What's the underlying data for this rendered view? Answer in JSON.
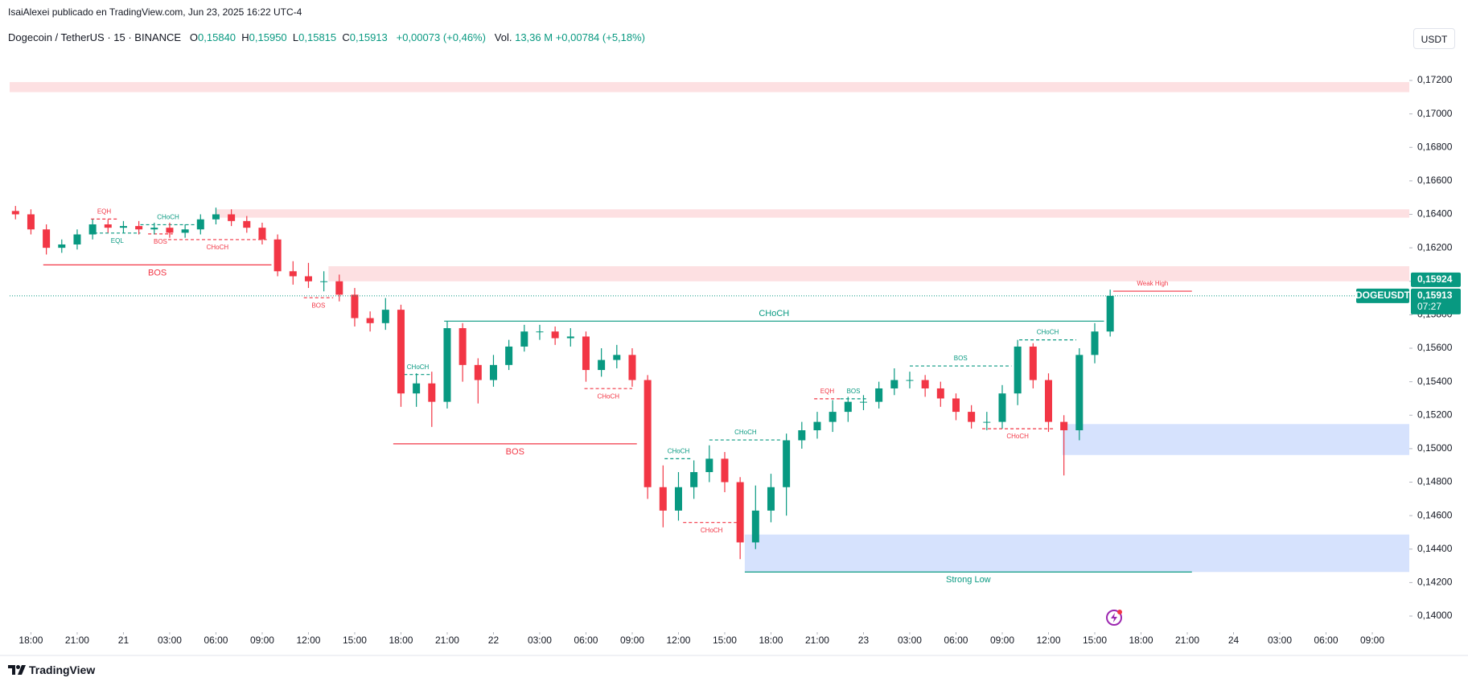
{
  "header": {
    "attribution": "IsaiAlexei publicado en TradingView.com, Jun 23, 2025 16:22 UTC-4"
  },
  "chart_data": {
    "type": "candlestick",
    "legend": {
      "symbol": "Dogecoin / TetherUS · 15 · BINANCE",
      "ohlc": [
        {
          "key": "O",
          "value": "0,15840"
        },
        {
          "key": "H",
          "value": "0,15950"
        },
        {
          "key": "L",
          "value": "0,15815"
        },
        {
          "key": "C",
          "value": "0,15913"
        }
      ],
      "change": "+0,00073 (+0,46%)",
      "volume_label": "Vol.",
      "volume": "13,36 M",
      "volume_change": "+0,00784 (+5,18%)"
    },
    "currency": "USDT",
    "up_color": "#089981",
    "down_color": "#f23645",
    "xlim": [
      -1.38,
      89.4
    ],
    "ylim": [
      0.13904,
      0.17522
    ],
    "xticks": [
      {
        "value": 0,
        "label": "18:00"
      },
      {
        "value": 3,
        "label": "21:00"
      },
      {
        "value": 6,
        "label": "21"
      },
      {
        "value": 9,
        "label": "03:00"
      },
      {
        "value": 12,
        "label": "06:00"
      },
      {
        "value": 15,
        "label": "09:00"
      },
      {
        "value": 18,
        "label": "12:00"
      },
      {
        "value": 21,
        "label": "15:00"
      },
      {
        "value": 24,
        "label": "18:00"
      },
      {
        "value": 27,
        "label": "21:00"
      },
      {
        "value": 30,
        "label": "22"
      },
      {
        "value": 33,
        "label": "03:00"
      },
      {
        "value": 36,
        "label": "06:00"
      },
      {
        "value": 39,
        "label": "09:00"
      },
      {
        "value": 42,
        "label": "12:00"
      },
      {
        "value": 45,
        "label": "15:00"
      },
      {
        "value": 48,
        "label": "18:00"
      },
      {
        "value": 51,
        "label": "21:00"
      },
      {
        "value": 54,
        "label": "23"
      },
      {
        "value": 57,
        "label": "03:00"
      },
      {
        "value": 60,
        "label": "06:00"
      },
      {
        "value": 63,
        "label": "09:00"
      },
      {
        "value": 66,
        "label": "12:00"
      },
      {
        "value": 69,
        "label": "15:00"
      },
      {
        "value": 72,
        "label": "18:00"
      },
      {
        "value": 75,
        "label": "21:00"
      },
      {
        "value": 78,
        "label": "24"
      },
      {
        "value": 81,
        "label": "03:00"
      },
      {
        "value": 84,
        "label": "06:00"
      },
      {
        "value": 87,
        "label": "09:00"
      }
    ],
    "yticks": [
      {
        "value": 0.14,
        "label": "0,14000"
      },
      {
        "value": 0.142,
        "label": "0,14200"
      },
      {
        "value": 0.144,
        "label": "0,14400"
      },
      {
        "value": 0.146,
        "label": "0,14600"
      },
      {
        "value": 0.148,
        "label": "0,14800"
      },
      {
        "value": 0.15,
        "label": "0,15000"
      },
      {
        "value": 0.152,
        "label": "0,15200"
      },
      {
        "value": 0.154,
        "label": "0,15400"
      },
      {
        "value": 0.156,
        "label": "0,15600"
      },
      {
        "value": 0.158,
        "label": "0,15800"
      },
      {
        "value": 0.16,
        "label": "0,16000"
      },
      {
        "value": 0.162,
        "label": "0,16200"
      },
      {
        "value": 0.164,
        "label": "0,16400"
      },
      {
        "value": 0.166,
        "label": "0,16600"
      },
      {
        "value": 0.168,
        "label": "0,16800"
      },
      {
        "value": 0.17,
        "label": "0,17000"
      },
      {
        "value": 0.172,
        "label": "0,17200"
      }
    ],
    "x": [
      -1,
      0,
      1,
      2,
      3,
      4,
      5,
      6,
      7,
      8,
      9,
      10,
      11,
      12,
      13,
      14,
      15,
      16,
      17,
      18,
      19,
      20,
      21,
      22,
      23,
      24,
      25,
      26,
      27,
      28,
      29,
      30,
      31,
      32,
      33,
      34,
      35,
      36,
      37,
      38,
      39,
      40,
      41,
      42,
      43,
      44,
      45,
      46,
      47,
      48,
      49,
      50,
      51,
      52,
      53,
      54,
      55,
      56,
      57,
      58,
      59,
      60,
      61,
      62,
      63,
      64,
      65,
      66,
      67,
      68,
      69,
      70
    ],
    "open": [
      0.1642,
      0.164,
      0.1631,
      0.162,
      0.1622,
      0.1628,
      0.1634,
      0.1632,
      0.1633,
      0.1631,
      0.1632,
      0.1629,
      0.1631,
      0.1637,
      0.164,
      0.1636,
      0.1632,
      0.1625,
      0.1606,
      0.1603,
      0.16,
      0.16,
      0.1592,
      0.1578,
      0.1575,
      0.1583,
      0.1533,
      0.1539,
      0.1528,
      0.1572,
      0.155,
      0.1541,
      0.155,
      0.1561,
      0.157,
      0.157,
      0.1566,
      0.1567,
      0.1547,
      0.1553,
      0.1556,
      0.1541,
      0.1477,
      0.1463,
      0.1477,
      0.1486,
      0.1494,
      0.148,
      0.1444,
      0.1463,
      0.1477,
      0.1505,
      0.1511,
      0.1516,
      0.1522,
      0.1528,
      0.1528,
      0.1536,
      0.1541,
      0.1541,
      0.1536,
      0.153,
      0.1522,
      0.1516,
      0.1516,
      0.1533,
      0.1561,
      0.1541,
      0.1516,
      0.1511,
      0.1556,
      0.157
    ],
    "high": [
      0.1645,
      0.1643,
      0.1634,
      0.1625,
      0.1631,
      0.1637,
      0.1637,
      0.1636,
      0.1636,
      0.1635,
      0.1635,
      0.1634,
      0.164,
      0.1644,
      0.1643,
      0.1639,
      0.1635,
      0.1628,
      0.1612,
      0.1611,
      0.1606,
      0.1604,
      0.1596,
      0.1582,
      0.159,
      0.1586,
      0.1545,
      0.1546,
      0.1576,
      0.1575,
      0.1554,
      0.1556,
      0.1565,
      0.1574,
      0.1574,
      0.1573,
      0.1572,
      0.157,
      0.156,
      0.1562,
      0.156,
      0.1544,
      0.149,
      0.1486,
      0.1493,
      0.1502,
      0.1498,
      0.1483,
      0.1478,
      0.1485,
      0.1509,
      0.1516,
      0.1522,
      0.1529,
      0.1531,
      0.1532,
      0.154,
      0.1548,
      0.1546,
      0.1544,
      0.154,
      0.1533,
      0.1526,
      0.1522,
      0.1538,
      0.1565,
      0.1563,
      0.1545,
      0.152,
      0.156,
      0.1575,
      0.1595
    ],
    "low": [
      0.1637,
      0.1628,
      0.1616,
      0.1617,
      0.1619,
      0.1625,
      0.1629,
      0.1629,
      0.1628,
      0.1628,
      0.1626,
      0.1626,
      0.1628,
      0.1634,
      0.1633,
      0.1629,
      0.1622,
      0.1603,
      0.1598,
      0.1596,
      0.1594,
      0.1588,
      0.1573,
      0.157,
      0.1571,
      0.1525,
      0.1525,
      0.1513,
      0.1524,
      0.154,
      0.1527,
      0.1537,
      0.1547,
      0.1558,
      0.1565,
      0.1562,
      0.1561,
      0.154,
      0.1543,
      0.1548,
      0.1537,
      0.147,
      0.1453,
      0.1457,
      0.147,
      0.148,
      0.1474,
      0.1434,
      0.144,
      0.1456,
      0.146,
      0.15,
      0.1506,
      0.151,
      0.1516,
      0.1523,
      0.1524,
      0.1532,
      0.1536,
      0.1531,
      0.1525,
      0.1517,
      0.1512,
      0.1511,
      0.1512,
      0.1526,
      0.1536,
      0.151,
      0.1484,
      0.1505,
      0.1551,
      0.1567
    ],
    "close": [
      0.164,
      0.1631,
      0.162,
      0.1622,
      0.1628,
      0.1634,
      0.1632,
      0.1633,
      0.1631,
      0.1632,
      0.1629,
      0.1631,
      0.1637,
      0.164,
      0.1636,
      0.1632,
      0.1625,
      0.1606,
      0.1603,
      0.16,
      0.16,
      0.1592,
      0.1578,
      0.1575,
      0.1583,
      0.1533,
      0.1539,
      0.1528,
      0.1572,
      0.155,
      0.1541,
      0.155,
      0.1561,
      0.157,
      0.157,
      0.1566,
      0.1567,
      0.1547,
      0.1553,
      0.1556,
      0.1541,
      0.1477,
      0.1463,
      0.1477,
      0.1486,
      0.1494,
      0.148,
      0.1444,
      0.1463,
      0.1477,
      0.1505,
      0.1511,
      0.1516,
      0.1522,
      0.1528,
      0.1528,
      0.1536,
      0.1541,
      0.1541,
      0.1536,
      0.153,
      0.1522,
      0.1516,
      0.1516,
      0.1533,
      0.1561,
      0.1541,
      0.1516,
      0.1511,
      0.1556,
      0.157,
      0.15913
    ],
    "zones": [
      {
        "top": 0.1719,
        "bottom": 0.1713,
        "color": "#fde0e2"
      },
      {
        "top": 0.1643,
        "bottom": 0.1638,
        "from": 12,
        "color": "#fde0e2"
      },
      {
        "top": 0.1609,
        "bottom": 0.16,
        "from": 19.3,
        "color": "#fde0e2"
      },
      {
        "top": 0.15147,
        "bottom": 0.14962,
        "from": 66.9,
        "color": "#d6e2fd"
      },
      {
        "top": 0.14487,
        "bottom": 0.14263,
        "from": 46.3,
        "color": "#d6e2fd"
      }
    ],
    "structures": [
      {
        "label": "EQH",
        "color": "#f23645",
        "y": 0.16372,
        "x": [
          3.9,
          5.6
        ],
        "style": "dashed",
        "side": "above"
      },
      {
        "label": "CHoCH",
        "color": "#089981",
        "y": 0.16338,
        "x": [
          7.1,
          10.7
        ],
        "style": "dashed",
        "side": "above"
      },
      {
        "label": "EQL",
        "color": "#089981",
        "y": 0.16288,
        "x": [
          4.1,
          7.1
        ],
        "style": "dashed",
        "side": "below"
      },
      {
        "label": "BOS",
        "color": "#f23645",
        "y": 0.16283,
        "x": [
          7.6,
          9.2
        ],
        "style": "dashed",
        "side": "below"
      },
      {
        "label": "CHoCH",
        "color": "#f23645",
        "y": 0.16249,
        "x": [
          8.9,
          15.3
        ],
        "style": "dashed",
        "side": "below"
      },
      {
        "label": "BOS",
        "color": "#f23645",
        "y": 0.16098,
        "x": [
          0.8,
          15.6
        ],
        "style": "solid",
        "side": "below"
      },
      {
        "label": "BOS",
        "color": "#f23645",
        "y": 0.15902,
        "x": [
          17.7,
          19.6
        ],
        "style": "dashed",
        "side": "below"
      },
      {
        "label": "CHoCH",
        "color": "#089981",
        "y": 0.15762,
        "x": [
          26.8,
          69.6
        ],
        "style": "solid",
        "side": "above"
      },
      {
        "label": "CHoCH",
        "color": "#089981",
        "y": 0.15443,
        "x": [
          24.2,
          26.0
        ],
        "style": "dashed",
        "side": "above"
      },
      {
        "label": "CHoCH",
        "color": "#f23645",
        "y": 0.15359,
        "x": [
          35.9,
          39.0
        ],
        "style": "dashed",
        "side": "below"
      },
      {
        "label": "BOS",
        "color": "#f23645",
        "y": 0.15029,
        "x": [
          23.5,
          39.3
        ],
        "style": "solid",
        "side": "below"
      },
      {
        "label": "CHoCH",
        "color": "#089981",
        "y": 0.1494,
        "x": [
          41.1,
          42.9
        ],
        "style": "dashed",
        "side": "above"
      },
      {
        "label": "CHoCH",
        "color": "#089981",
        "y": 0.15052,
        "x": [
          44.0,
          48.7
        ],
        "style": "dashed",
        "side": "above"
      },
      {
        "label": "CHoCH",
        "color": "#f23645",
        "y": 0.14559,
        "x": [
          42.3,
          46.0
        ],
        "style": "dashed",
        "side": "below"
      },
      {
        "label": "EQH",
        "color": "#f23645",
        "y": 0.15298,
        "x": [
          50.8,
          52.5
        ],
        "style": "dashed",
        "side": "above"
      },
      {
        "label": "BOS",
        "color": "#089981",
        "y": 0.15298,
        "x": [
          52.5,
          54.2
        ],
        "style": "dashed",
        "side": "above"
      },
      {
        "label": "BOS",
        "color": "#089981",
        "y": 0.15494,
        "x": [
          57.0,
          63.6
        ],
        "style": "dashed",
        "side": "above"
      },
      {
        "label": "CHoCH",
        "color": "#f23645",
        "y": 0.15119,
        "x": [
          61.7,
          66.3
        ],
        "style": "dashed",
        "side": "below"
      },
      {
        "label": "CHoCH",
        "color": "#089981",
        "y": 0.1565,
        "x": [
          64.1,
          67.8
        ],
        "style": "dashed",
        "side": "above"
      },
      {
        "label": "Weak High",
        "color": "#f23645",
        "y": 0.15941,
        "x": [
          70.2,
          75.3
        ],
        "style": "solid",
        "side": "above"
      },
      {
        "label": "Strong Low",
        "color": "#089981",
        "y": 0.14263,
        "x": [
          46.3,
          75.3
        ],
        "style": "solid",
        "side": "below"
      }
    ],
    "price_tags": {
      "symbol": "DOGEUSDT",
      "last": {
        "value": 0.15913,
        "label": "0,15913"
      },
      "countdown": "07:27",
      "high": {
        "value": 0.15924,
        "label": "0,15924"
      },
      "color": "#089981"
    }
  },
  "footer": {
    "brand": "TradingView"
  }
}
